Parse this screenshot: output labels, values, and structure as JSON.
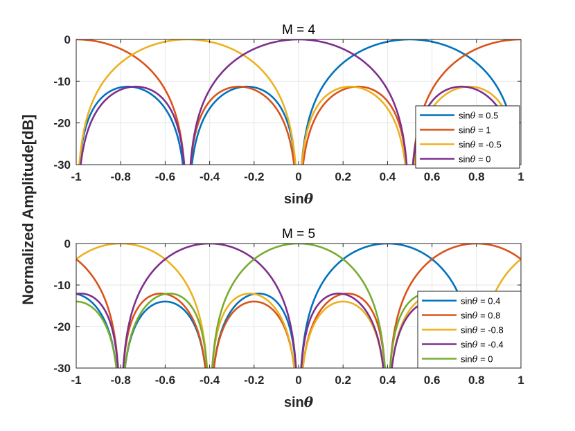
{
  "figure": {
    "ylabel": "Normalized Amplitude[dB]"
  },
  "chart_data": [
    {
      "type": "line",
      "title": "M = 4",
      "M": 4,
      "xlabel": "sinθ",
      "ylabel": "Normalized Amplitude[dB]",
      "xlim": [
        -1,
        1
      ],
      "ylim": [
        -30,
        0
      ],
      "xticks": [
        -1,
        -0.8,
        -0.6,
        -0.4,
        -0.2,
        0,
        0.2,
        0.4,
        0.6,
        0.8,
        1
      ],
      "xtick_labels": [
        "-1",
        "-0.8",
        "-0.6",
        "-0.4",
        "-0.2",
        "0",
        "0.2",
        "0.4",
        "0.6",
        "0.8",
        "1"
      ],
      "yticks": [
        0,
        -10,
        -20,
        -30
      ],
      "ytick_labels": [
        "0",
        "-10",
        "-20",
        "-30"
      ],
      "grid": true,
      "legend_position": "bottom-right",
      "series": [
        {
          "name": "sinθ = 0.5",
          "steer": 0.5,
          "color": "#0072BD"
        },
        {
          "name": "sinθ = 1",
          "steer": 1,
          "color": "#D95319"
        },
        {
          "name": "sinθ = -0.5",
          "steer": -0.5,
          "color": "#EDB120"
        },
        {
          "name": "sinθ = 0",
          "steer": 0,
          "color": "#7E2F8E"
        }
      ]
    },
    {
      "type": "line",
      "title": "M = 5",
      "M": 5,
      "xlabel": "sinθ",
      "ylabel": "Normalized Amplitude[dB]",
      "xlim": [
        -1,
        1
      ],
      "ylim": [
        -30,
        0
      ],
      "xticks": [
        -1,
        -0.8,
        -0.6,
        -0.4,
        -0.2,
        0,
        0.2,
        0.4,
        0.6,
        0.8,
        1
      ],
      "xtick_labels": [
        "-1",
        "-0.8",
        "-0.6",
        "-0.4",
        "-0.2",
        "0",
        "0.2",
        "0.4",
        "0.6",
        "0.8",
        "1"
      ],
      "yticks": [
        0,
        -10,
        -20,
        -30
      ],
      "ytick_labels": [
        "0",
        "-10",
        "-20",
        "-30"
      ],
      "grid": true,
      "legend_position": "right",
      "series": [
        {
          "name": "sinθ = 0.4",
          "steer": 0.4,
          "color": "#0072BD"
        },
        {
          "name": "sinθ = 0.8",
          "steer": 0.8,
          "color": "#D95319"
        },
        {
          "name": "sinθ = -0.8",
          "steer": -0.8,
          "color": "#EDB120"
        },
        {
          "name": "sinθ = -0.4",
          "steer": -0.4,
          "color": "#7E2F8E"
        },
        {
          "name": "sinθ = 0",
          "steer": 0,
          "color": "#77AC30"
        }
      ]
    }
  ]
}
